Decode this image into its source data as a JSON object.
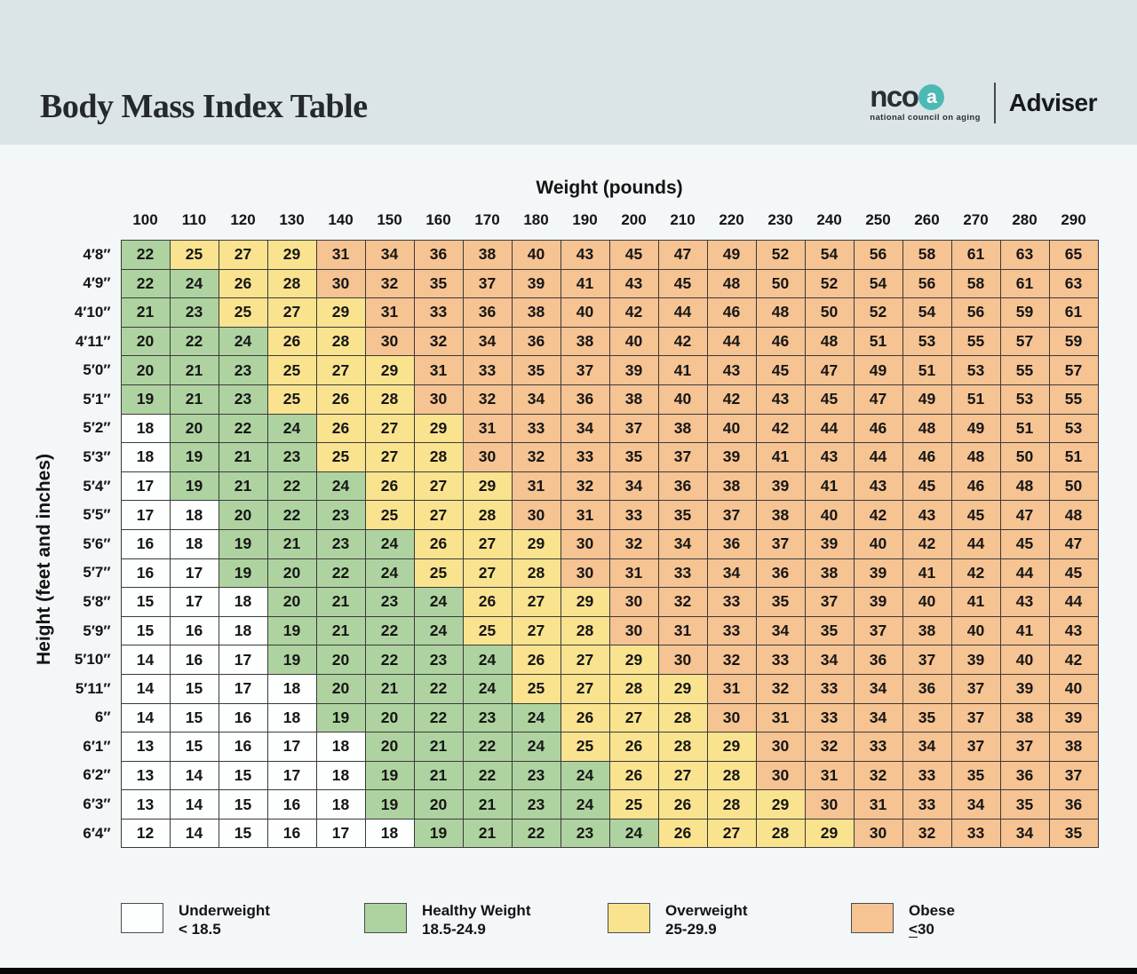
{
  "header": {
    "title": "Body Mass Index Table",
    "brand": {
      "logo_text": "nco",
      "logo_a": "a",
      "tagline": "national council on aging",
      "product": "Adviser"
    }
  },
  "colors": {
    "header_bg": "#dbe5e8",
    "page_bg": "#f3f7f8",
    "underweight": "#fdfefe",
    "healthy": "#aed3a0",
    "overweight": "#fae38f",
    "obese": "#f6c392",
    "grid_border": "#3a3a3a",
    "brand_teal": "#4db9b4"
  },
  "chart_data": {
    "type": "heatmap",
    "title": "Body Mass Index Table",
    "value_meaning": "BMI (body mass index)",
    "legend_position": "bottom",
    "x_axis": {
      "label": "Weight (pounds)",
      "ticks": [
        100,
        110,
        120,
        130,
        140,
        150,
        160,
        170,
        180,
        190,
        200,
        210,
        220,
        230,
        240,
        250,
        260,
        270,
        280,
        290
      ]
    },
    "y_axis": {
      "label": "Height (feet and inches)",
      "ticks": [
        "4′8″",
        "4′9″",
        "4′10″",
        "4′11″",
        "5′0″",
        "5′1″",
        "5′2″",
        "5′3″",
        "5′4″",
        "5′5″",
        "5′6″",
        "5′7″",
        "5′8″",
        "5′9″",
        "5′10″",
        "5′11″",
        "6″",
        "6′1″",
        "6′2″",
        "6′3″",
        "6′4″"
      ]
    },
    "values": [
      [
        22,
        25,
        27,
        29,
        31,
        34,
        36,
        38,
        40,
        43,
        45,
        47,
        49,
        52,
        54,
        56,
        58,
        61,
        63,
        65
      ],
      [
        22,
        24,
        26,
        28,
        30,
        32,
        35,
        37,
        39,
        41,
        43,
        45,
        48,
        50,
        52,
        54,
        56,
        58,
        61,
        63
      ],
      [
        21,
        23,
        25,
        27,
        29,
        31,
        33,
        36,
        38,
        40,
        42,
        44,
        46,
        48,
        50,
        52,
        54,
        56,
        59,
        61
      ],
      [
        20,
        22,
        24,
        26,
        28,
        30,
        32,
        34,
        36,
        38,
        40,
        42,
        44,
        46,
        48,
        51,
        53,
        55,
        57,
        59
      ],
      [
        20,
        21,
        23,
        25,
        27,
        29,
        31,
        33,
        35,
        37,
        39,
        41,
        43,
        45,
        47,
        49,
        51,
        53,
        55,
        57
      ],
      [
        19,
        21,
        23,
        25,
        26,
        28,
        30,
        32,
        34,
        36,
        38,
        40,
        42,
        43,
        45,
        47,
        49,
        51,
        53,
        55
      ],
      [
        18,
        20,
        22,
        24,
        26,
        27,
        29,
        31,
        33,
        34,
        37,
        38,
        40,
        42,
        44,
        46,
        48,
        49,
        51,
        53
      ],
      [
        18,
        19,
        21,
        23,
        25,
        27,
        28,
        30,
        32,
        33,
        35,
        37,
        39,
        41,
        43,
        44,
        46,
        48,
        50,
        51
      ],
      [
        17,
        19,
        21,
        22,
        24,
        26,
        27,
        29,
        31,
        32,
        34,
        36,
        38,
        39,
        41,
        43,
        45,
        46,
        48,
        50
      ],
      [
        17,
        18,
        20,
        22,
        23,
        25,
        27,
        28,
        30,
        31,
        33,
        35,
        37,
        38,
        40,
        42,
        43,
        45,
        47,
        48
      ],
      [
        16,
        18,
        19,
        21,
        23,
        24,
        26,
        27,
        29,
        30,
        32,
        34,
        36,
        37,
        39,
        40,
        42,
        44,
        45,
        47
      ],
      [
        16,
        17,
        19,
        20,
        22,
        24,
        25,
        27,
        28,
        30,
        31,
        33,
        34,
        36,
        38,
        39,
        41,
        42,
        44,
        45
      ],
      [
        15,
        17,
        18,
        20,
        21,
        23,
        24,
        26,
        27,
        29,
        30,
        32,
        33,
        35,
        37,
        39,
        40,
        41,
        43,
        44
      ],
      [
        15,
        16,
        18,
        19,
        21,
        22,
        24,
        25,
        27,
        28,
        30,
        31,
        33,
        34,
        35,
        37,
        38,
        40,
        41,
        43
      ],
      [
        14,
        16,
        17,
        19,
        20,
        22,
        23,
        24,
        26,
        27,
        29,
        30,
        32,
        33,
        34,
        36,
        37,
        39,
        40,
        42
      ],
      [
        14,
        15,
        17,
        18,
        20,
        21,
        22,
        24,
        25,
        27,
        28,
        29,
        31,
        32,
        33,
        34,
        36,
        37,
        39,
        40
      ],
      [
        14,
        15,
        16,
        18,
        19,
        20,
        22,
        23,
        24,
        26,
        27,
        28,
        30,
        31,
        33,
        34,
        35,
        37,
        38,
        39
      ],
      [
        13,
        15,
        16,
        17,
        18,
        20,
        21,
        22,
        24,
        25,
        26,
        28,
        29,
        30,
        32,
        33,
        34,
        37,
        37,
        38
      ],
      [
        13,
        14,
        15,
        17,
        18,
        19,
        21,
        22,
        23,
        24,
        26,
        27,
        28,
        30,
        31,
        32,
        33,
        35,
        36,
        37
      ],
      [
        13,
        14,
        15,
        16,
        18,
        19,
        20,
        21,
        23,
        24,
        25,
        26,
        28,
        29,
        30,
        31,
        33,
        34,
        35,
        36
      ],
      [
        12,
        14,
        15,
        16,
        17,
        18,
        19,
        21,
        22,
        23,
        24,
        26,
        27,
        28,
        29,
        30,
        32,
        33,
        34,
        35
      ]
    ],
    "thresholds": {
      "underweight_max": 18,
      "healthy_max": 24,
      "overweight_max": 29
    }
  },
  "legend": {
    "items": [
      {
        "key": "underweight",
        "label": "Underweight",
        "range": "< 18.5",
        "range_underline_first_char": false
      },
      {
        "key": "healthy",
        "label": "Healthy Weight",
        "range": "18.5-24.9",
        "range_underline_first_char": false
      },
      {
        "key": "overweight",
        "label": "Overweight",
        "range": "25-29.9",
        "range_underline_first_char": false
      },
      {
        "key": "obese",
        "label": "Obese",
        "range": "<30",
        "range_underline_first_char": true
      }
    ]
  }
}
